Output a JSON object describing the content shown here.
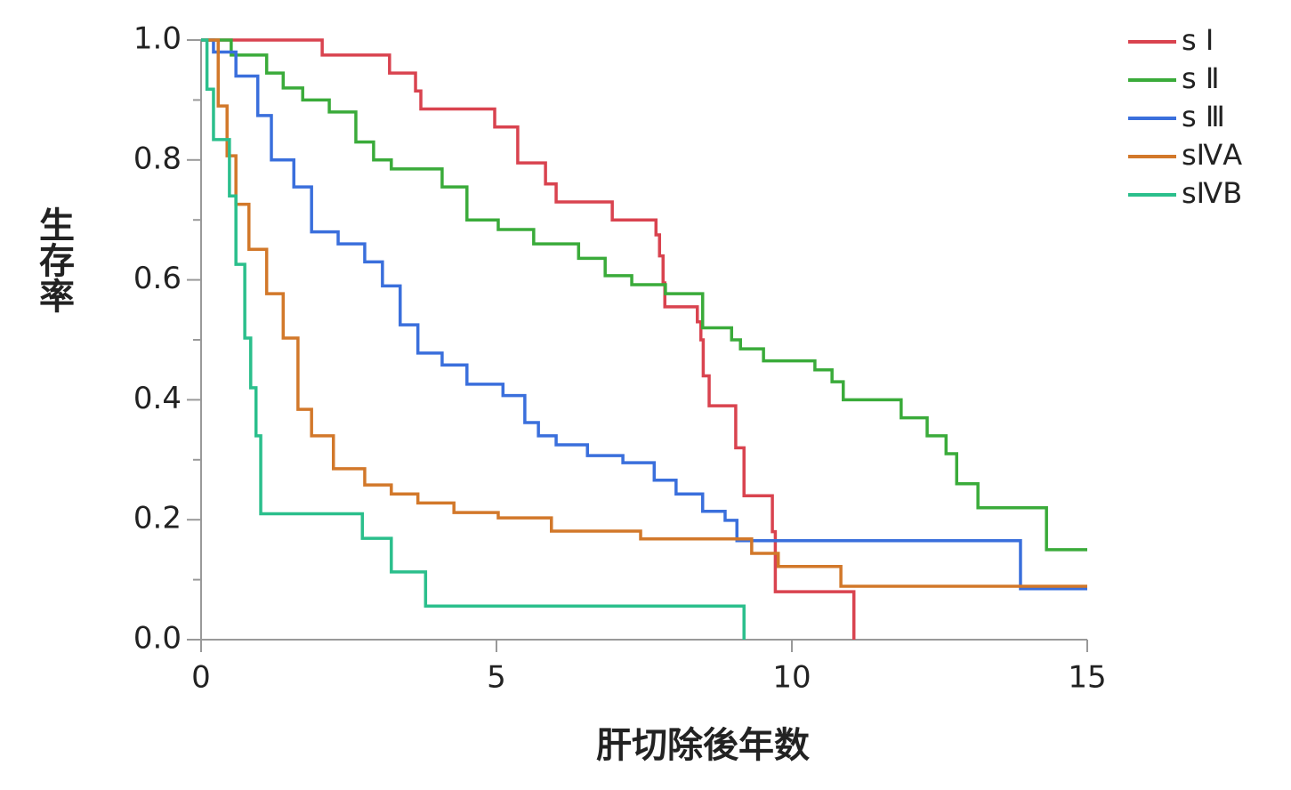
{
  "chart_data": {
    "type": "step",
    "xlabel": "肝切除後年数",
    "ylabel": "生存率",
    "xlim": [
      0,
      15
    ],
    "ylim": [
      0,
      1
    ],
    "xticks": [
      0,
      5,
      10,
      15
    ],
    "yticks": [
      {
        "value": 0,
        "label": "0.0"
      },
      {
        "value": 0.2,
        "label": "0.2"
      },
      {
        "value": 0.4,
        "label": "0.4"
      },
      {
        "value": 0.6,
        "label": "0.6"
      },
      {
        "value": 0.8,
        "label": "0.8"
      },
      {
        "value": 1,
        "label": "1.0"
      }
    ],
    "yminorticks": [
      0.1,
      0.3,
      0.5,
      0.7,
      0.9
    ],
    "legend": "top-right",
    "series": [
      {
        "name": "s Ⅰ",
        "color": "#d9434f",
        "x": [
          0,
          2.05,
          3.19,
          3.63,
          3.72,
          4.97,
          5.36,
          5.83,
          6.01,
          6.96,
          7.7,
          7.76,
          7.82,
          7.85,
          8.4,
          8.46,
          8.5,
          8.6,
          9.05,
          9.19,
          9.67,
          9.72,
          11.05
        ],
        "values": [
          1,
          0.975,
          0.945,
          0.915,
          0.885,
          0.855,
          0.795,
          0.76,
          0.73,
          0.7,
          0.675,
          0.64,
          0.595,
          0.555,
          0.53,
          0.5,
          0.44,
          0.39,
          0.32,
          0.24,
          0.18,
          0.08,
          0
        ]
      },
      {
        "name": "s Ⅱ",
        "color": "#3aab3a",
        "x": [
          0,
          0.51,
          1.11,
          1.39,
          1.72,
          2.17,
          2.62,
          2.92,
          3.22,
          4.08,
          4.5,
          5.03,
          5.63,
          6.39,
          6.84,
          7.29,
          7.86,
          8.49,
          8.98,
          9.13,
          9.52,
          10.39,
          10.68,
          10.87,
          11.85,
          12.29,
          12.61,
          12.79,
          13.15,
          14.31,
          15
        ],
        "values": [
          1,
          0.975,
          0.945,
          0.92,
          0.9,
          0.88,
          0.83,
          0.8,
          0.785,
          0.755,
          0.7,
          0.684,
          0.66,
          0.636,
          0.607,
          0.592,
          0.577,
          0.52,
          0.5,
          0.485,
          0.465,
          0.45,
          0.43,
          0.4,
          0.37,
          0.34,
          0.31,
          0.26,
          0.22,
          0.15,
          0.15
        ]
      },
      {
        "name": "s Ⅲ",
        "color": "#3a6fdc",
        "x": [
          0,
          0.21,
          0.59,
          0.96,
          1.19,
          1.57,
          1.87,
          2.32,
          2.77,
          3.07,
          3.37,
          3.67,
          4.08,
          4.5,
          5.11,
          5.48,
          5.71,
          6.01,
          6.54,
          7.14,
          7.67,
          8.04,
          8.49,
          8.87,
          9.07,
          13.87,
          15
        ],
        "values": [
          1,
          0.98,
          0.94,
          0.874,
          0.8,
          0.755,
          0.68,
          0.66,
          0.63,
          0.59,
          0.525,
          0.478,
          0.458,
          0.426,
          0.407,
          0.362,
          0.34,
          0.325,
          0.307,
          0.295,
          0.266,
          0.243,
          0.214,
          0.199,
          0.165,
          0.085,
          0.085
        ]
      },
      {
        "name": "sⅣA",
        "color": "#d2782a",
        "x": [
          0,
          0.29,
          0.44,
          0.59,
          0.81,
          1.11,
          1.39,
          1.64,
          1.87,
          2.24,
          2.77,
          3.22,
          3.67,
          4.28,
          5.03,
          5.93,
          7.44,
          9.32,
          9.77,
          10.83,
          15
        ],
        "values": [
          1,
          0.89,
          0.807,
          0.726,
          0.651,
          0.577,
          0.503,
          0.384,
          0.34,
          0.285,
          0.258,
          0.243,
          0.228,
          0.212,
          0.203,
          0.181,
          0.168,
          0.144,
          0.122,
          0.089,
          0.089
        ]
      },
      {
        "name": "sⅣB",
        "color": "#2bbf8c",
        "x": [
          0,
          0.1,
          0.21,
          0.48,
          0.59,
          0.74,
          0.84,
          0.93,
          1.01,
          2.73,
          3.22,
          3.8,
          9.19
        ],
        "values": [
          1,
          0.918,
          0.834,
          0.74,
          0.626,
          0.503,
          0.42,
          0.34,
          0.21,
          0.169,
          0.113,
          0.056,
          0
        ]
      }
    ]
  }
}
